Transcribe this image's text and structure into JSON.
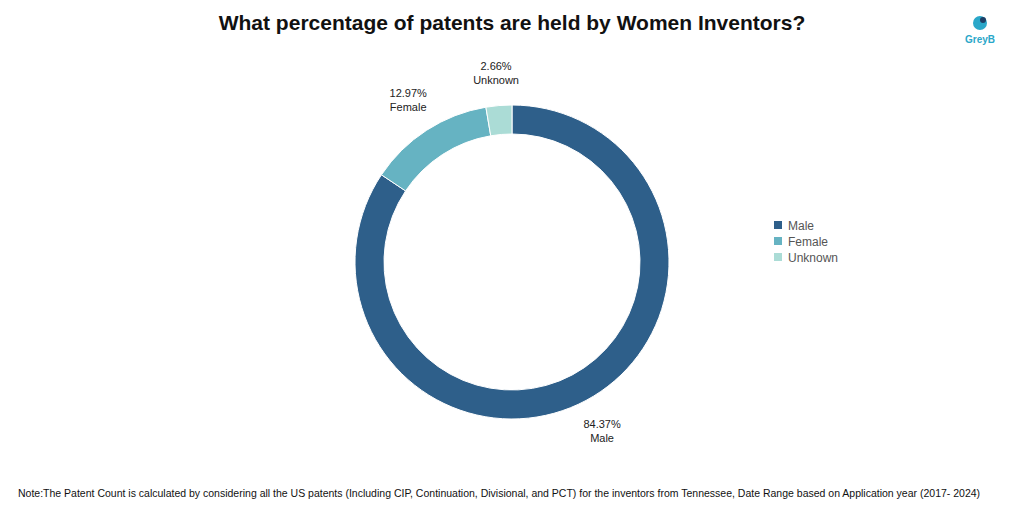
{
  "chart_data": {
    "type": "pie",
    "title": "What percentage of patents are held by Women Inventors?",
    "categories": [
      "Male",
      "Female",
      "Unknown"
    ],
    "values": [
      84.37,
      12.97,
      2.66
    ],
    "value_labels": [
      "84.37%",
      "12.97%",
      "2.66%"
    ],
    "colors": [
      "#2e5f8a",
      "#66b3c2",
      "#abdcd6"
    ],
    "data_labels": true,
    "legend": "right",
    "note": "Note:The Patent Count is calculated by considering all the US patents (Including CIP, Continuation, Divisional, and PCT) for the inventors from Tennessee, Date Range based on Application year (2017- 2024)"
  },
  "logo": {
    "text": "GreyB"
  }
}
